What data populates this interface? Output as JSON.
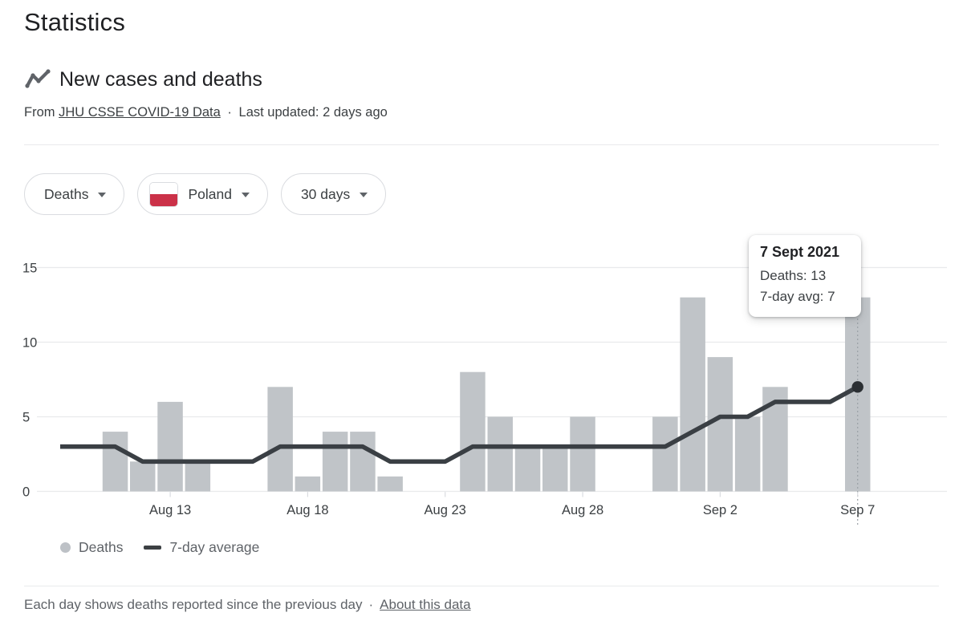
{
  "page": {
    "title": "Statistics"
  },
  "section": {
    "heading": "New cases and deaths",
    "source_prefix": "From",
    "source_link": "JHU CSSE COVID-19 Data",
    "source_separator": "·",
    "source_suffix": "Last updated: 2 days ago"
  },
  "filters": {
    "metric": {
      "label": "Deaths"
    },
    "region": {
      "label": "Poland",
      "flag_top": "#ffffff",
      "flag_bottom": "#cb3148"
    },
    "range": {
      "label": "30 days"
    }
  },
  "chart_data": {
    "type": "bar+line",
    "title": "New cases and deaths - Deaths - Poland - 30 days",
    "categories": [
      "Aug 9",
      "Aug 10",
      "Aug 11",
      "Aug 12",
      "Aug 13",
      "Aug 14",
      "Aug 15",
      "Aug 16",
      "Aug 17",
      "Aug 18",
      "Aug 19",
      "Aug 20",
      "Aug 21",
      "Aug 22",
      "Aug 23",
      "Aug 24",
      "Aug 25",
      "Aug 26",
      "Aug 27",
      "Aug 28",
      "Aug 29",
      "Aug 30",
      "Aug 31",
      "Sep 1",
      "Sep 2",
      "Sep 3",
      "Sep 4",
      "Sep 5",
      "Sep 6",
      "Sep 7"
    ],
    "series": [
      {
        "name": "Deaths",
        "type": "bar",
        "color": "#c0c4c8",
        "values": [
          0,
          0,
          4,
          2,
          6,
          2,
          0,
          0,
          7,
          1,
          4,
          4,
          1,
          0,
          0,
          8,
          5,
          3,
          3,
          5,
          0,
          0,
          5,
          13,
          9,
          5,
          7,
          0,
          0,
          13
        ]
      },
      {
        "name": "7-day average",
        "type": "line",
        "color": "#3a3f44",
        "values": [
          3,
          3,
          3,
          2,
          2,
          2,
          2,
          2,
          3,
          3,
          3,
          3,
          2,
          2,
          2,
          3,
          3,
          3,
          3,
          3,
          3,
          3,
          3,
          4,
          5,
          5,
          6,
          6,
          6,
          7
        ]
      }
    ],
    "ylim": [
      0,
      15
    ],
    "yticks": [
      0,
      5,
      10,
      15
    ],
    "xticks": [
      {
        "index": 4,
        "label": "Aug 13"
      },
      {
        "index": 9,
        "label": "Aug 18"
      },
      {
        "index": 14,
        "label": "Aug 23"
      },
      {
        "index": 19,
        "label": "Aug 28"
      },
      {
        "index": 24,
        "label": "Sep 2"
      },
      {
        "index": 29,
        "label": "Sep 7"
      }
    ],
    "grid": true,
    "legend_position": "bottom",
    "highlight_index": 29,
    "colors": {
      "grid": "#e9eaec",
      "axis_text": "#3c4043",
      "tick": "#dadce0",
      "highlight_line": "#9aa0a6",
      "highlight_dot": "#2b2f33",
      "icon": "#5f6368"
    }
  },
  "tooltip": {
    "title": "7 Sept 2021",
    "line1": "Deaths: 13",
    "line2": "7-day avg: 7"
  },
  "legend": [
    {
      "label": "Deaths"
    },
    {
      "label": "7-day average"
    }
  ],
  "footer": {
    "text": "Each day shows deaths reported since the previous day",
    "separator": "·",
    "link": "About this data"
  }
}
